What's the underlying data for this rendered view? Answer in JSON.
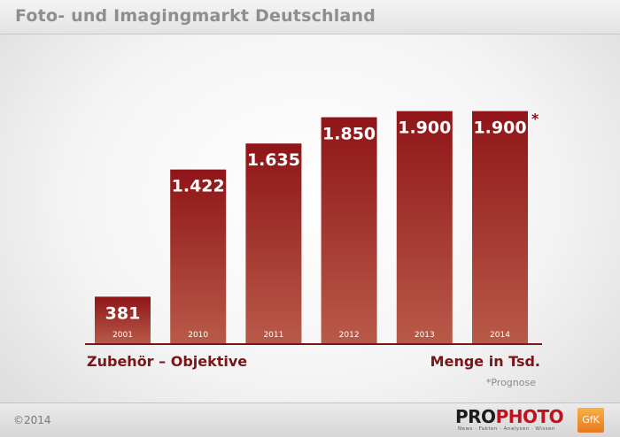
{
  "header": {
    "title": "Foto- und Imagingmarkt Deutschland"
  },
  "chart_data": {
    "type": "bar",
    "categories": [
      "2001",
      "2010",
      "2011",
      "2012",
      "2013",
      "2014"
    ],
    "values": [
      381,
      1422,
      1635,
      1850,
      1900,
      1900
    ],
    "value_labels": [
      "381",
      "1.422",
      "1.635",
      "1.850",
      "1.900",
      "1.900"
    ],
    "ylim": [
      0,
      2100
    ],
    "grid": false,
    "xlabel": "Zubehör – Objektive",
    "ylabel": "Menge in Tsd.",
    "annotation_marker": "*",
    "bar_color": "#8f1518",
    "bar_color_bottom": "#b85a48"
  },
  "footnote": "*Prognose",
  "footer": {
    "copyright": "©2014",
    "logo_pro": "PRO",
    "logo_photo": "PHOTO",
    "logo_tagline": "News · Fakten · Analysen · Wissen",
    "gfk": "GfK"
  }
}
